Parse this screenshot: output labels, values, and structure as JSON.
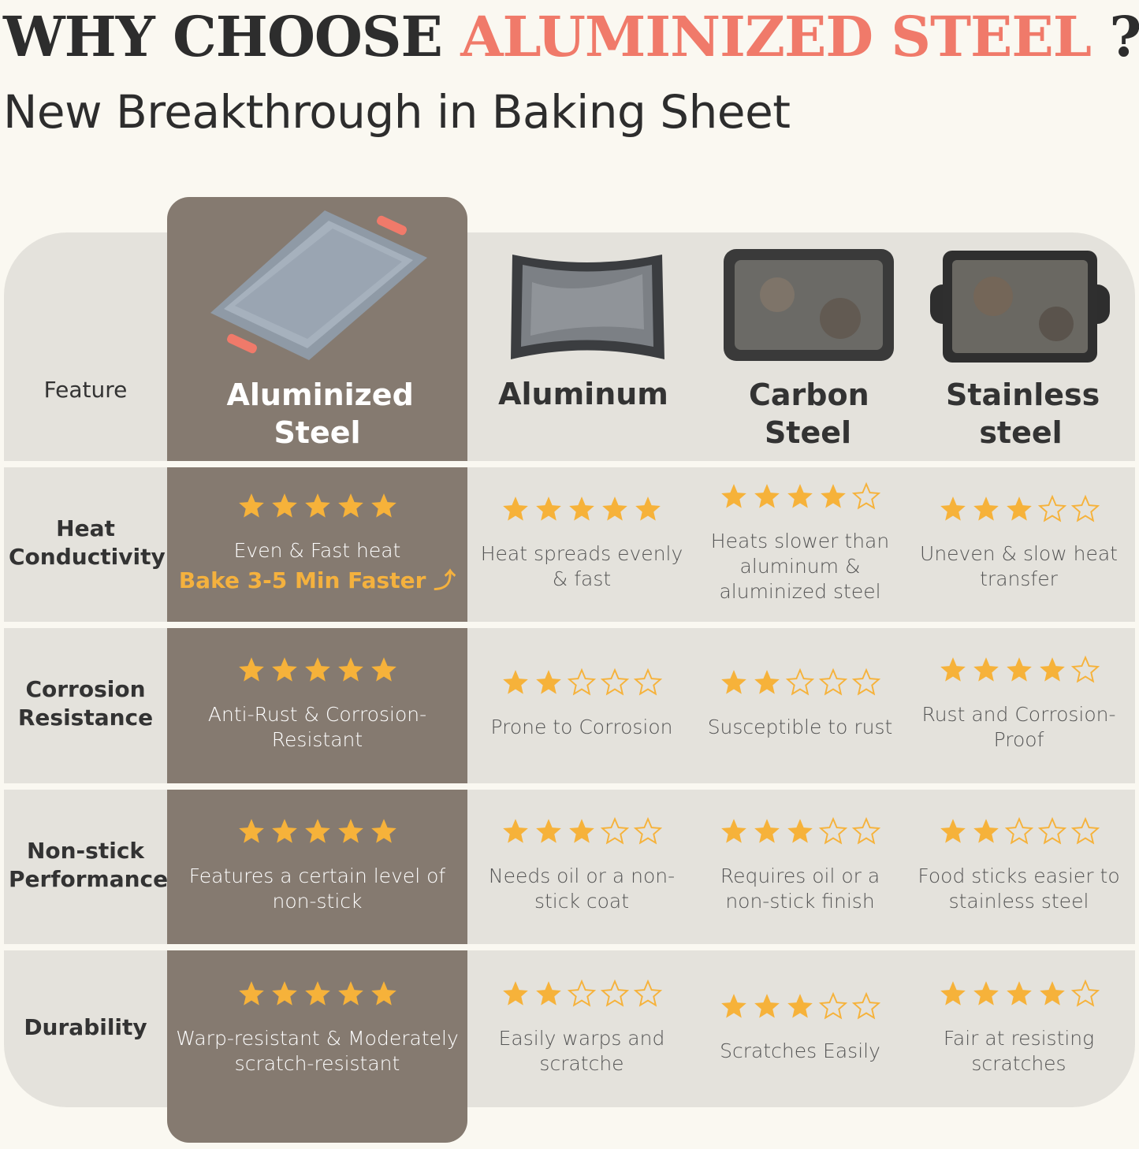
{
  "header": {
    "title_prefix": "WHY CHOOSE",
    "title_accent": "ALUMINIZED STEEL",
    "title_suffix": "?",
    "subtitle": "New Breakthrough in Baking Sheet"
  },
  "colors": {
    "accent": "#f07a6a",
    "highlight_column": "#857a70",
    "table_bg": "#e4e2dc",
    "star": "#f6b23a",
    "page_bg": "#faf8f1"
  },
  "table": {
    "feature_header": "Feature",
    "columns": [
      {
        "name": "Aluminized Steel",
        "image": "aluminized-steel-tray-image"
      },
      {
        "name": "Aluminum",
        "image": "aluminum-tray-image"
      },
      {
        "name": "Carbon Steel",
        "image": "carbon-steel-tray-image"
      },
      {
        "name": "Stainless steel",
        "image": "stainless-steel-tray-image"
      }
    ],
    "rows": [
      {
        "feature": "Heat Conductivity",
        "cells": [
          {
            "rating": 5,
            "text": "Even & Fast heat",
            "highlight": "Bake 3-5 Min Faster"
          },
          {
            "rating": 5,
            "text": "Heat spreads evenly & fast"
          },
          {
            "rating": 4,
            "text": "Heats slower than aluminum & aluminized steel"
          },
          {
            "rating": 3,
            "text": "Uneven & slow heat transfer"
          }
        ]
      },
      {
        "feature": "Corrosion Resistance",
        "cells": [
          {
            "rating": 5,
            "text": "Anti-Rust & Corrosion-Resistant"
          },
          {
            "rating": 2,
            "text": "Prone to Corrosion"
          },
          {
            "rating": 2,
            "text": "Susceptible to rust"
          },
          {
            "rating": 4,
            "text": "Rust and Corrosion-Proof"
          }
        ]
      },
      {
        "feature": "Non-stick Performance",
        "cells": [
          {
            "rating": 5,
            "text": "Features a certain level of non-stick"
          },
          {
            "rating": 3,
            "text": "Needs oil or a non-stick coat"
          },
          {
            "rating": 3,
            "text": "Requires oil or a non-stick finish"
          },
          {
            "rating": 2,
            "text": "Food sticks easier to stainless steel"
          }
        ]
      },
      {
        "feature": "Durability",
        "cells": [
          {
            "rating": 5,
            "text": "Warp-resistant & Moderately scratch-resistant"
          },
          {
            "rating": 2,
            "text": "Easily warps and scratche"
          },
          {
            "rating": 3,
            "text": "Scratches Easily"
          },
          {
            "rating": 4,
            "text": "Fair at resisting scratches"
          }
        ]
      }
    ]
  }
}
